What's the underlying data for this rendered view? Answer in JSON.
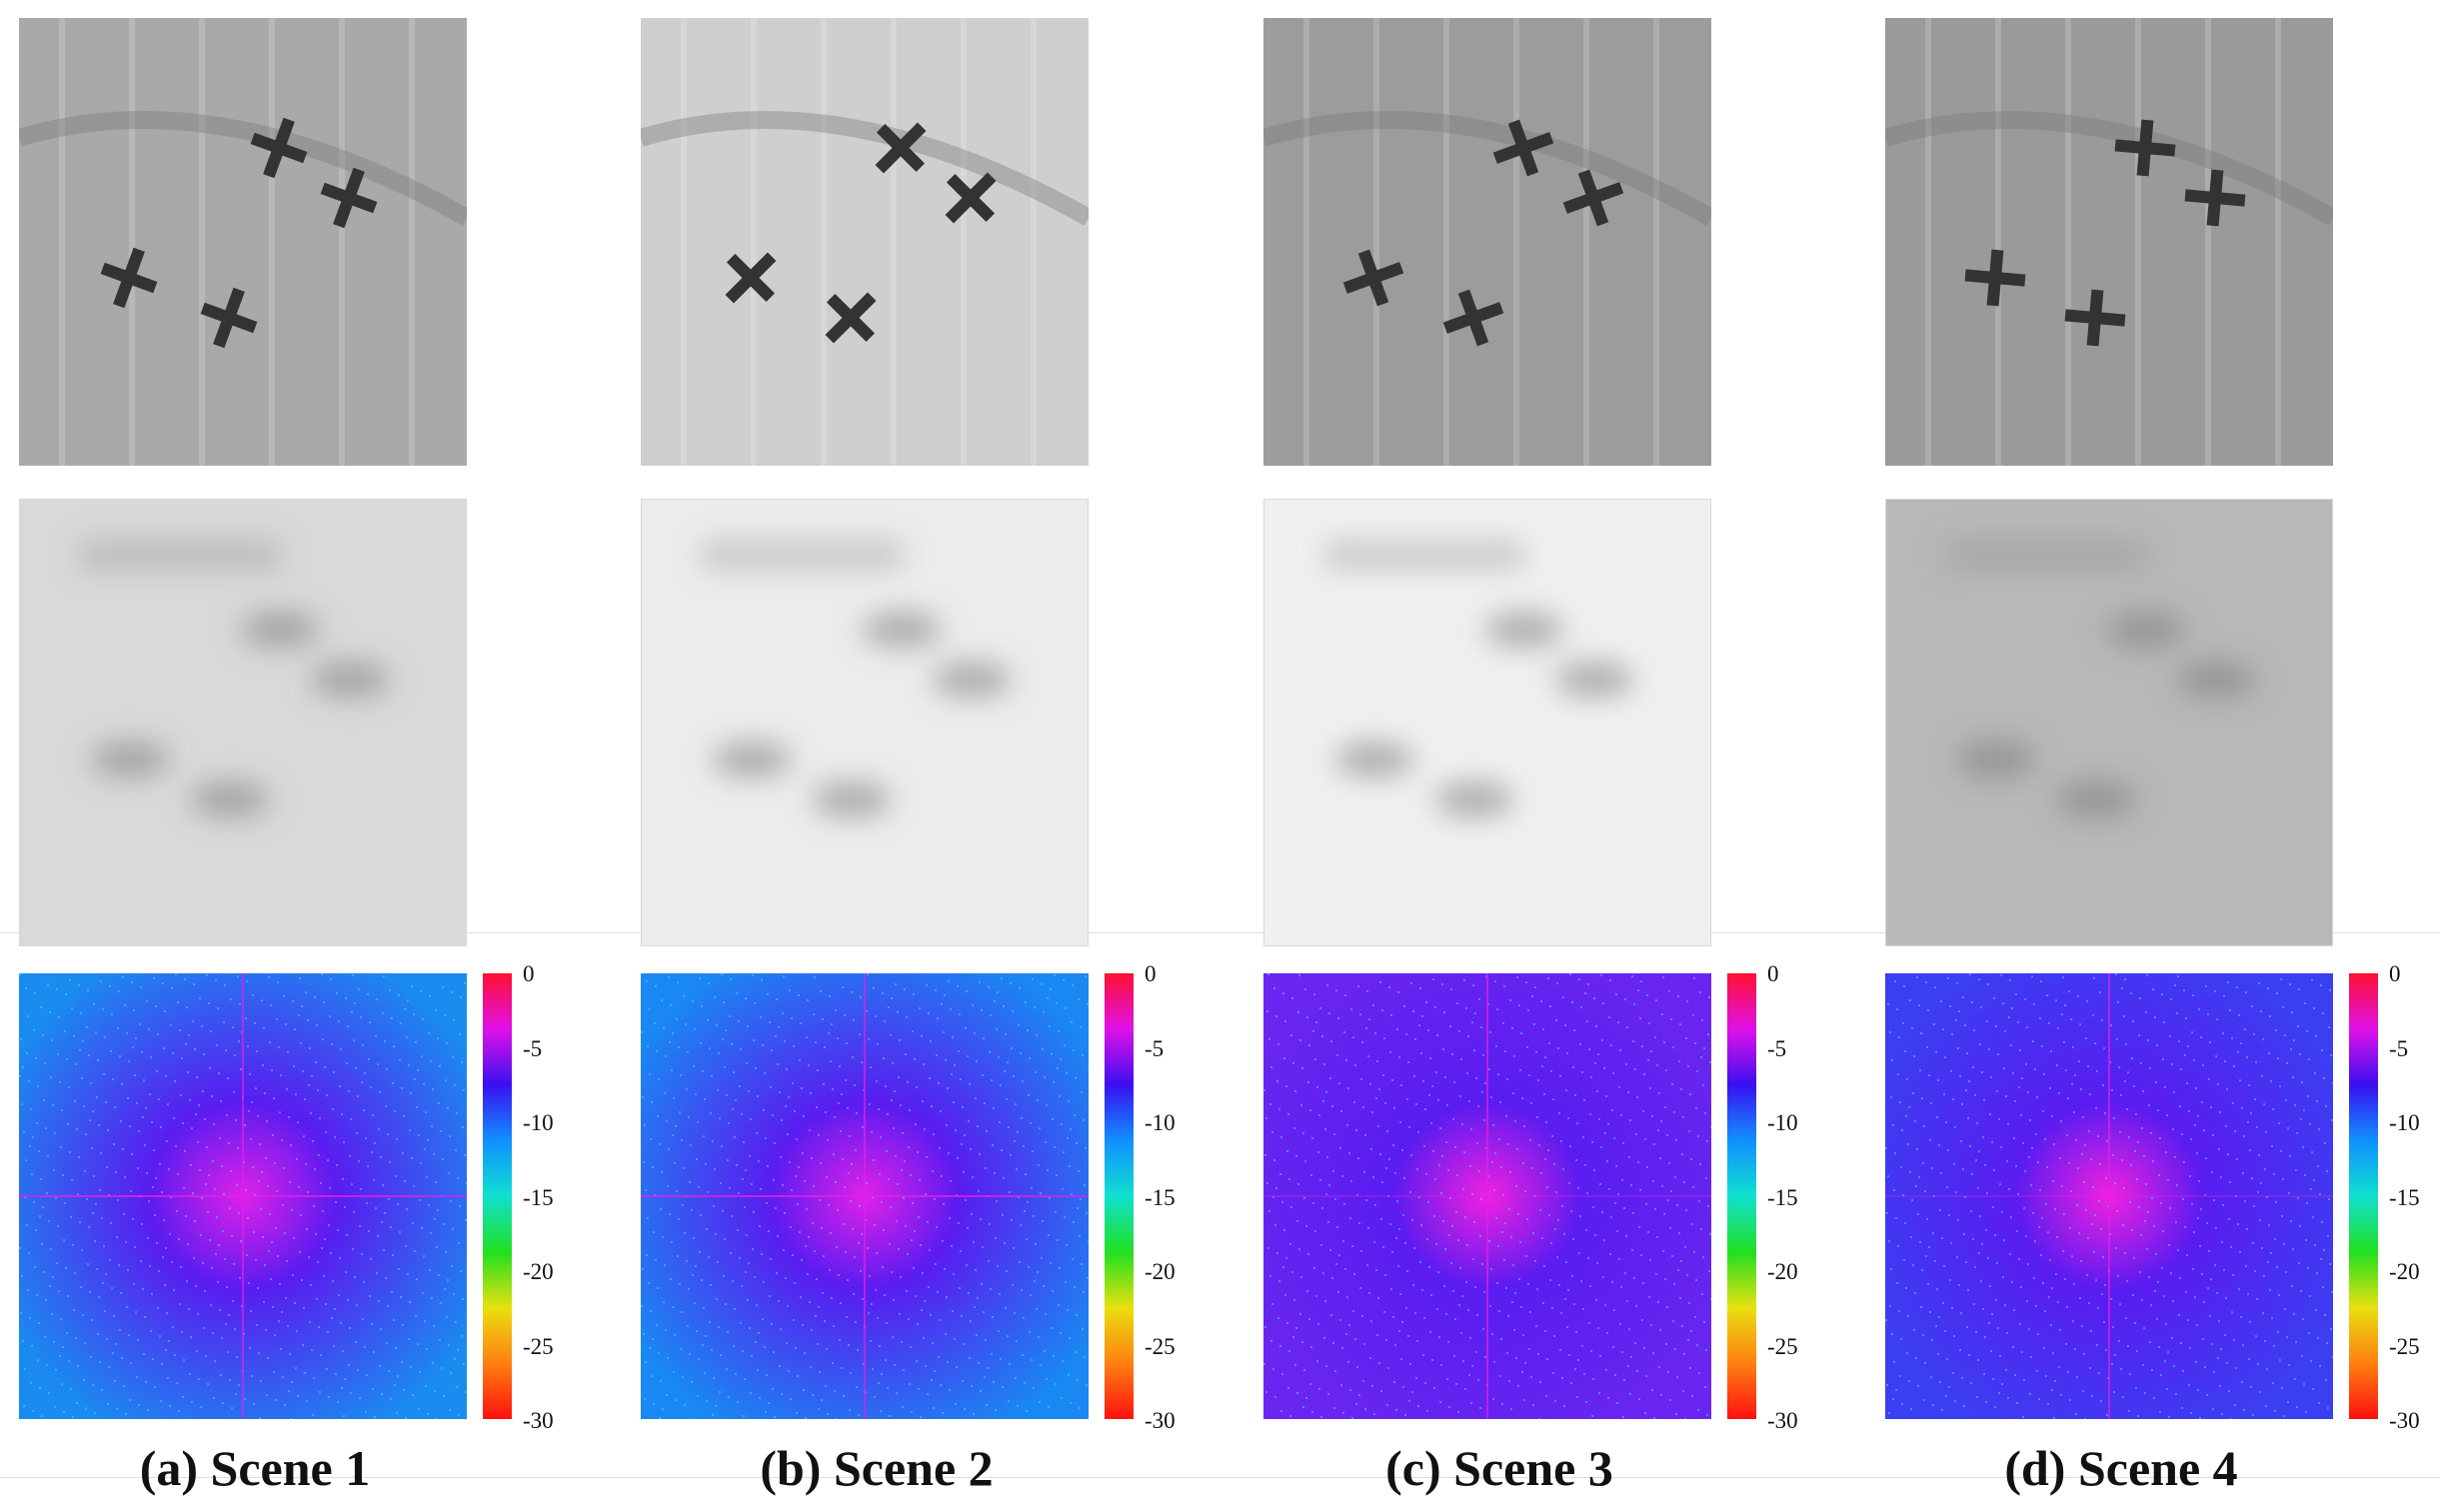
{
  "figure": {
    "colorbar_ticks": [
      "0",
      "-5",
      "-10",
      "-15",
      "-20",
      "-25",
      "-30"
    ],
    "colormap": [
      "#ff1030",
      "#e010e8",
      "#3a10f0",
      "#1090ff",
      "#10e0d0",
      "#20e020",
      "#e8e010",
      "#ff8010",
      "#ff1010"
    ],
    "scenes": [
      {
        "caption": "(a) Scene 1",
        "top_tone": "#a9a9a9",
        "blur_tone": "#d9d9d9",
        "spectrum_bg": "#1a8cf0",
        "spectrum_center": "#e020e8"
      },
      {
        "caption": "(b) Scene 2",
        "top_tone": "#cfcfcf",
        "blur_tone": "#ececec",
        "spectrum_bg": "#1a88f2",
        "spectrum_center": "#e020e8"
      },
      {
        "caption": "(c) Scene 3",
        "top_tone": "#9c9c9c",
        "blur_tone": "#f0f0f0",
        "spectrum_bg": "#6a26f0",
        "spectrum_center": "#f020e0"
      },
      {
        "caption": "(d) Scene 4",
        "top_tone": "#9a9a9a",
        "blur_tone": "#b8b8b8",
        "spectrum_bg": "#3a40f2",
        "spectrum_center": "#f020e0"
      }
    ]
  }
}
